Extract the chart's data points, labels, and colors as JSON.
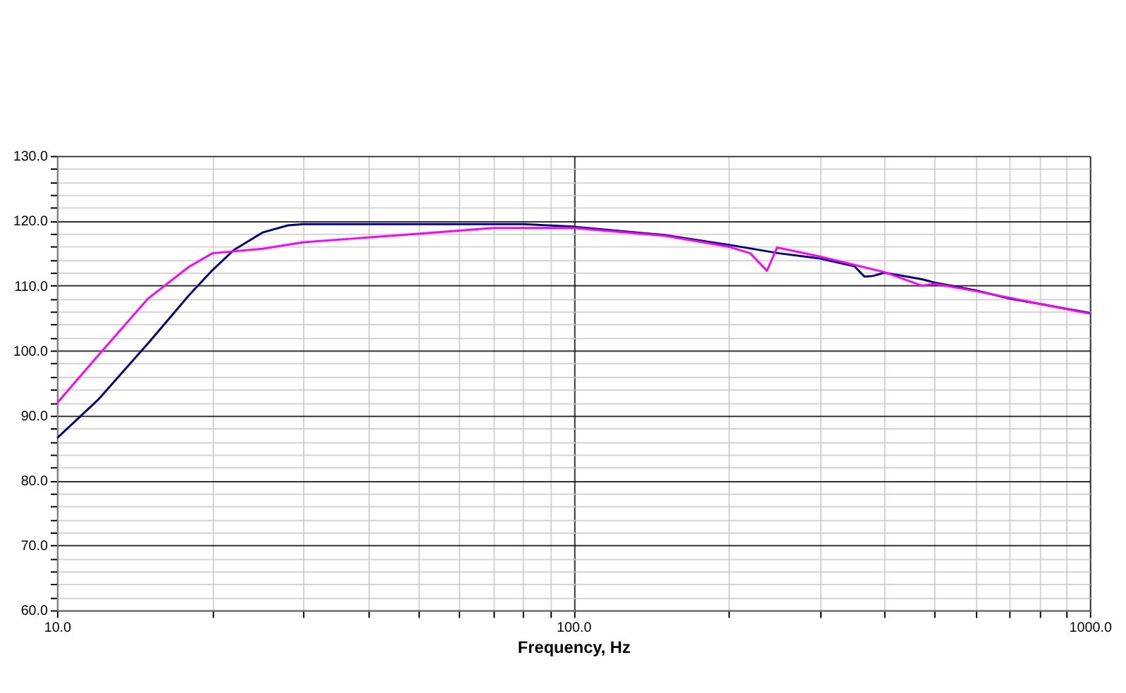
{
  "chart_data": {
    "type": "line",
    "xlabel": "Frequency, Hz",
    "log": "x",
    "grid": true,
    "marker": "none",
    "line_style": "solid",
    "xlim": [
      10,
      1000
    ],
    "ylim": [
      60,
      130
    ],
    "xticks": [
      {
        "value": 10,
        "label": "10.0"
      },
      {
        "value": 20,
        "label": null
      },
      {
        "value": 30,
        "label": null
      },
      {
        "value": 40,
        "label": null
      },
      {
        "value": 50,
        "label": null
      },
      {
        "value": 60,
        "label": null
      },
      {
        "value": 70,
        "label": null
      },
      {
        "value": 80,
        "label": null
      },
      {
        "value": 90,
        "label": null
      },
      {
        "value": 100,
        "label": "100.0"
      },
      {
        "value": 200,
        "label": null
      },
      {
        "value": 300,
        "label": null
      },
      {
        "value": 400,
        "label": null
      },
      {
        "value": 500,
        "label": null
      },
      {
        "value": 600,
        "label": null
      },
      {
        "value": 700,
        "label": null
      },
      {
        "value": 800,
        "label": null
      },
      {
        "value": 900,
        "label": null
      },
      {
        "value": 1000,
        "label": "1000.0"
      }
    ],
    "yticks": [
      {
        "value": 60,
        "label": "60.0"
      },
      {
        "value": 62,
        "label": null
      },
      {
        "value": 64,
        "label": null
      },
      {
        "value": 66,
        "label": null
      },
      {
        "value": 68,
        "label": null
      },
      {
        "value": 70,
        "label": "70.0"
      },
      {
        "value": 72,
        "label": null
      },
      {
        "value": 74,
        "label": null
      },
      {
        "value": 76,
        "label": null
      },
      {
        "value": 78,
        "label": null
      },
      {
        "value": 80,
        "label": "80.0"
      },
      {
        "value": 82,
        "label": null
      },
      {
        "value": 84,
        "label": null
      },
      {
        "value": 86,
        "label": null
      },
      {
        "value": 88,
        "label": null
      },
      {
        "value": 90,
        "label": "90.0"
      },
      {
        "value": 92,
        "label": null
      },
      {
        "value": 94,
        "label": null
      },
      {
        "value": 96,
        "label": null
      },
      {
        "value": 98,
        "label": null
      },
      {
        "value": 100,
        "label": "100.0"
      },
      {
        "value": 102,
        "label": null
      },
      {
        "value": 104,
        "label": null
      },
      {
        "value": 106,
        "label": null
      },
      {
        "value": 108,
        "label": null
      },
      {
        "value": 110,
        "label": "110.0"
      },
      {
        "value": 112,
        "label": null
      },
      {
        "value": 114,
        "label": null
      },
      {
        "value": 116,
        "label": null
      },
      {
        "value": 118,
        "label": null
      },
      {
        "value": 120,
        "label": "120.0"
      },
      {
        "value": 122,
        "label": null
      },
      {
        "value": 124,
        "label": null
      },
      {
        "value": 126,
        "label": null
      },
      {
        "value": 128,
        "label": null
      },
      {
        "value": 130,
        "label": "130.0"
      }
    ],
    "series": [
      {
        "color": "#000080",
        "x": [
          10,
          12,
          15,
          18,
          20,
          22,
          25,
          28,
          30,
          50,
          80,
          100,
          150,
          200,
          250,
          300,
          350,
          366,
          380,
          400,
          473,
          500,
          600,
          700,
          800,
          1000
        ],
        "values": [
          86.5,
          92.4,
          101.1,
          108.5,
          112.4,
          115.5,
          118.2,
          119.3,
          119.5,
          119.5,
          119.5,
          119.1,
          117.8,
          116.3,
          115.0,
          114.2,
          113.0,
          111.4,
          111.5,
          112.0,
          111.0,
          110.5,
          109.3,
          108.0,
          107.2,
          105.8
        ]
      },
      {
        "color": "#ff00ff",
        "x": [
          10,
          12,
          15,
          18,
          20,
          25,
          30,
          50,
          70,
          100,
          150,
          200,
          220,
          237,
          248,
          300,
          400,
          473,
          500,
          600,
          800,
          1000
        ],
        "values": [
          91.9,
          99.2,
          108.0,
          112.9,
          115.0,
          115.7,
          116.7,
          118.0,
          118.9,
          118.9,
          117.7,
          116.0,
          115.0,
          112.3,
          115.9,
          114.5,
          112.1,
          110.0,
          110.3,
          109.2,
          107.2,
          105.7
        ]
      }
    ]
  }
}
